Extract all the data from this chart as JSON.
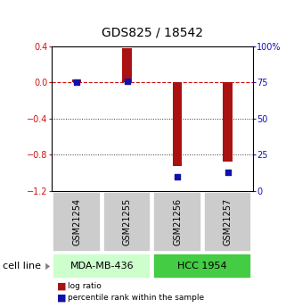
{
  "title": "GDS825 / 18542",
  "samples": [
    "GSM21254",
    "GSM21255",
    "GSM21256",
    "GSM21257"
  ],
  "log_ratio": [
    0.03,
    0.38,
    -0.92,
    -0.88
  ],
  "percentile_rank": [
    75,
    76,
    10,
    13
  ],
  "left_ylim": [
    -1.2,
    0.4
  ],
  "right_ylim": [
    0,
    100
  ],
  "left_yticks": [
    -1.2,
    -0.8,
    -0.4,
    0.0,
    0.4
  ],
  "right_yticks": [
    0,
    25,
    50,
    75,
    100
  ],
  "right_yticklabels": [
    "0",
    "25",
    "50",
    "75",
    "100%"
  ],
  "hline_red": 0.0,
  "hlines_dotted": [
    -0.4,
    -0.8
  ],
  "bar_color": "#aa1111",
  "dot_color": "#1111aa",
  "cell_lines": [
    {
      "label": "MDA-MB-436",
      "samples": [
        0,
        1
      ],
      "color": "#ccffcc"
    },
    {
      "label": "HCC 1954",
      "samples": [
        2,
        3
      ],
      "color": "#44cc44"
    }
  ],
  "cell_line_label": "cell line",
  "legend_items": [
    {
      "label": "log ratio",
      "color": "#aa1111"
    },
    {
      "label": "percentile rank within the sample",
      "color": "#1111aa"
    }
  ],
  "sample_box_color": "#cccccc",
  "background_color": "#ffffff",
  "bar_width": 0.18,
  "title_fontsize": 10,
  "tick_fontsize": 7,
  "sample_label_fontsize": 7,
  "cell_line_fontsize": 8
}
